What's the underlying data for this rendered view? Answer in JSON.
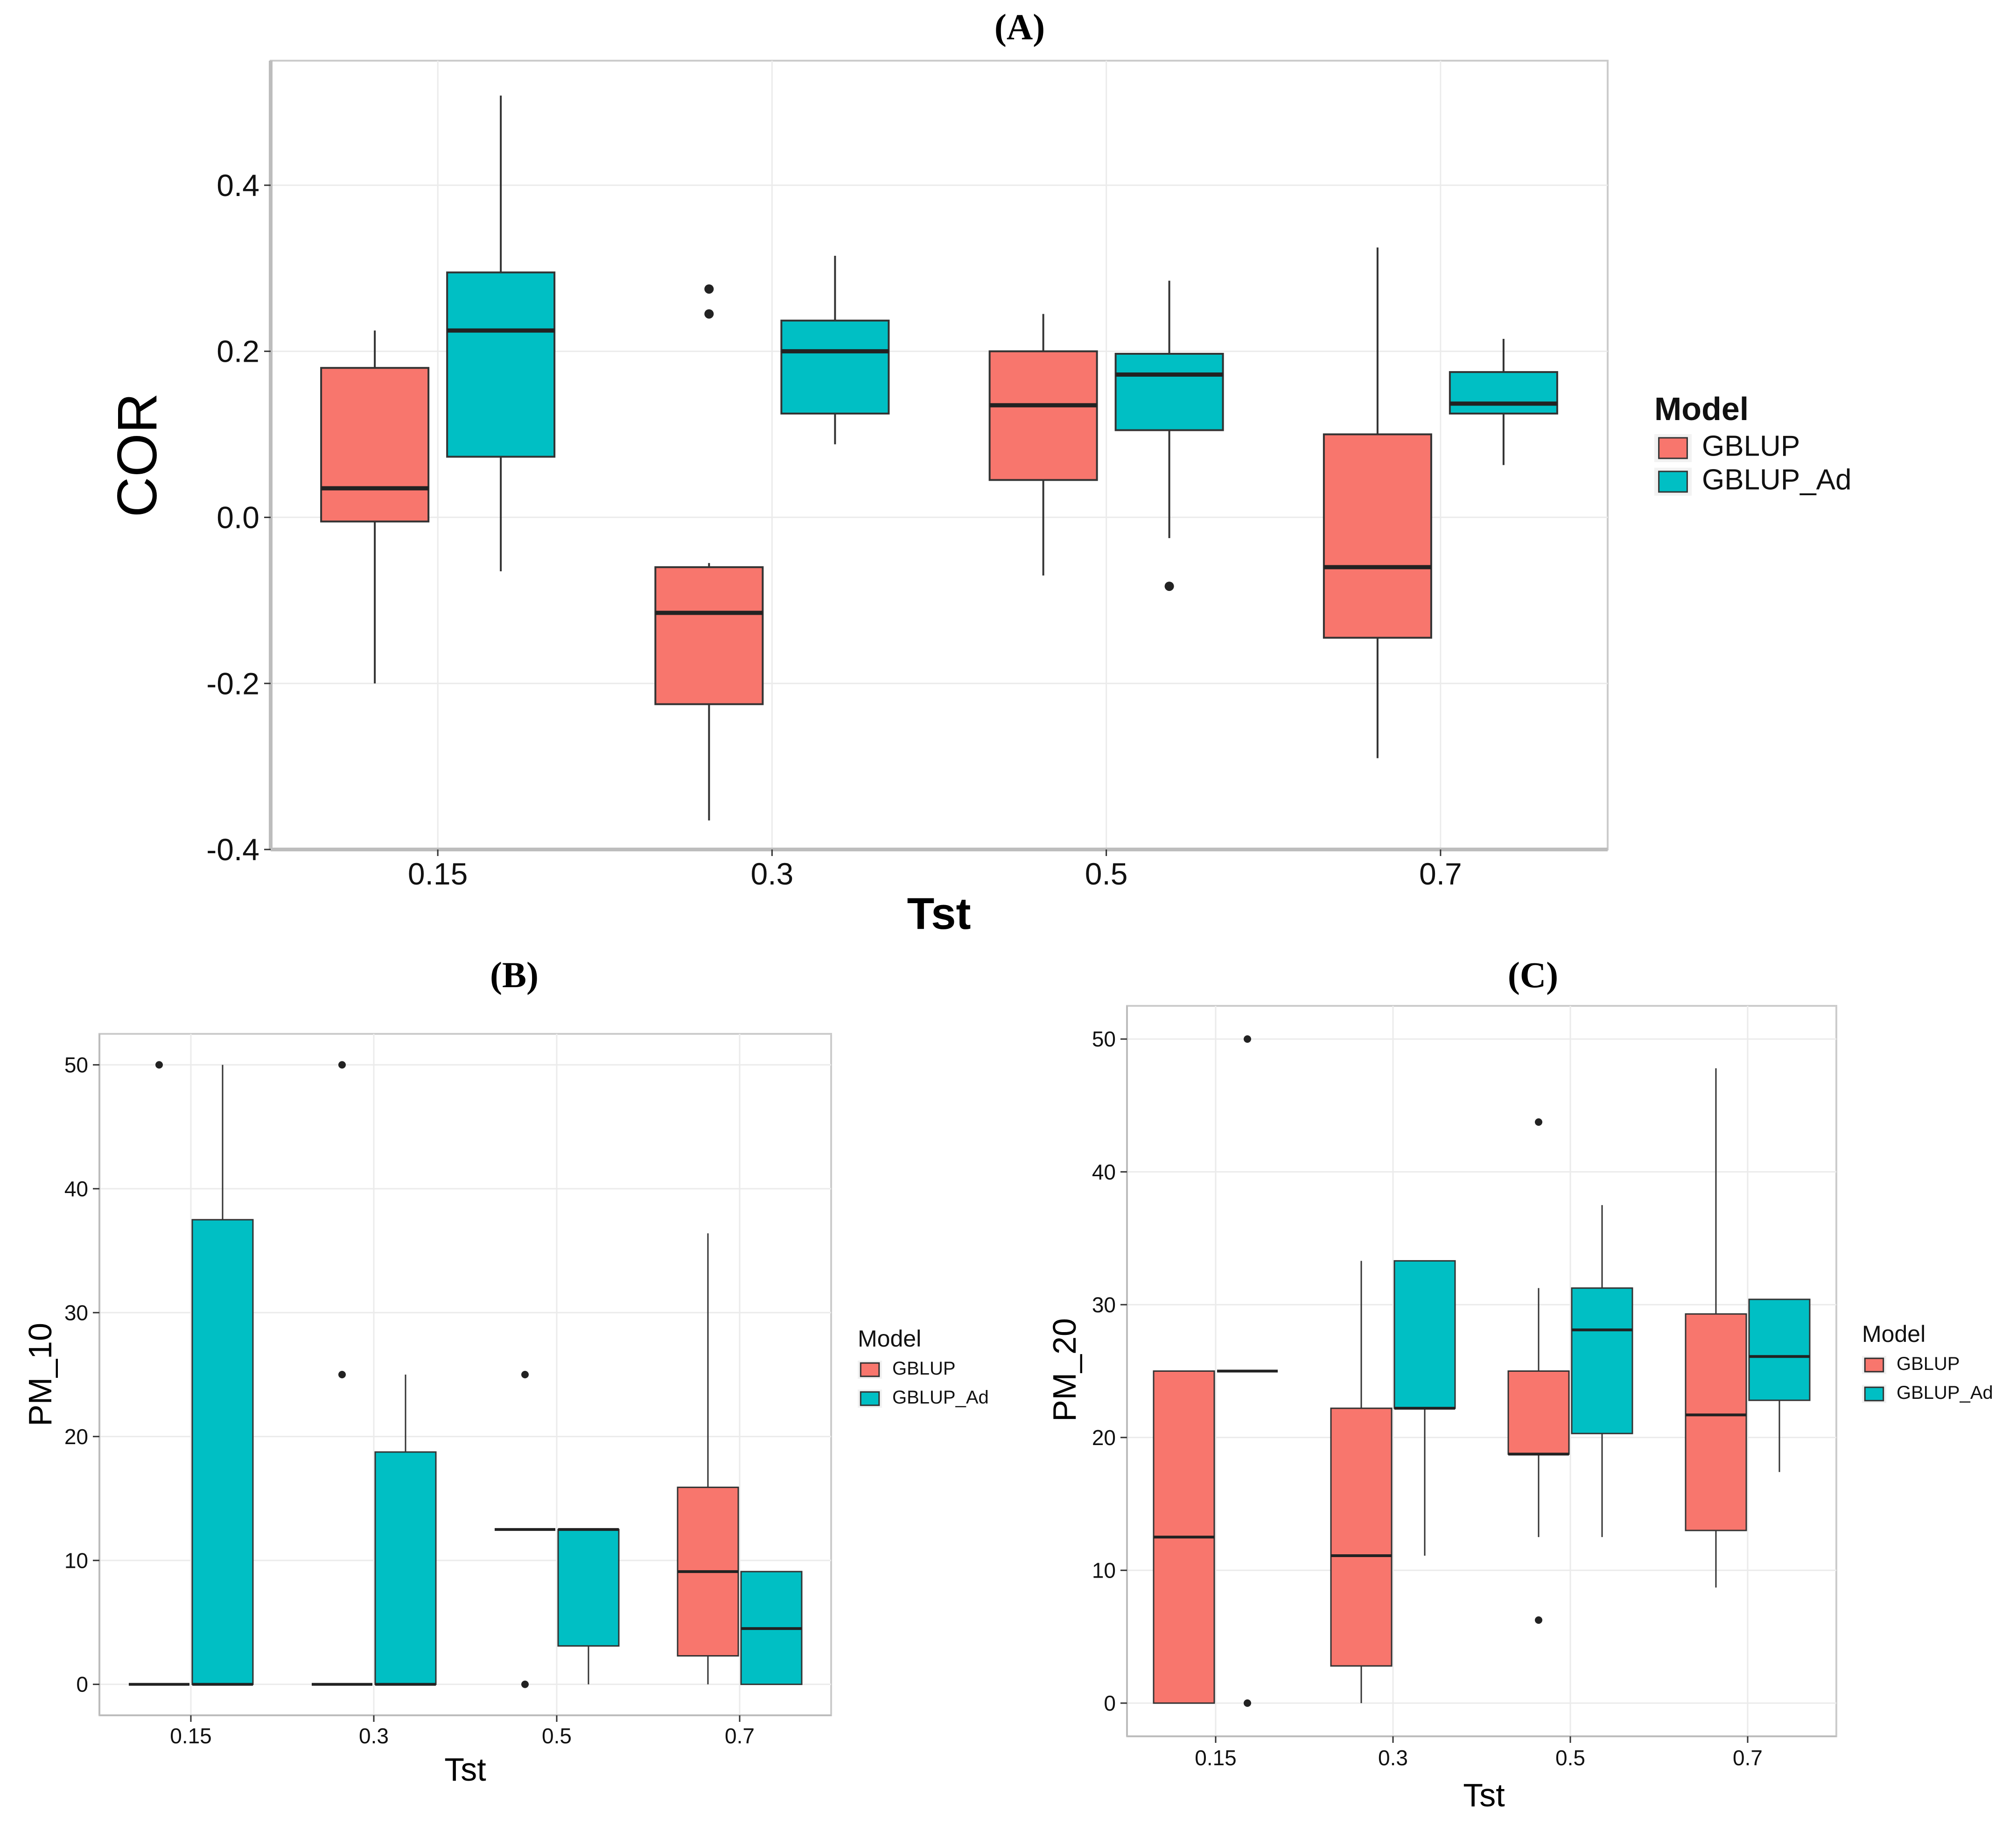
{
  "colors": {
    "GBLUP": "#F8766D",
    "GBLUP_Ad": "#00BFC4",
    "panel_border": "#cccccc",
    "grid": "#ebebeb"
  },
  "chart_data": [
    {
      "panel": "(A)",
      "type": "box",
      "xlabel": "Tst",
      "ylabel": "COR",
      "ylim": [
        -0.4,
        0.55
      ],
      "yticks": [
        -0.4,
        -0.2,
        0.0,
        0.2,
        0.4
      ],
      "ytick_labels": [
        "-0.4",
        "-0.2",
        "0.0",
        "0.2",
        "0.4"
      ],
      "categories": [
        "0.15",
        "0.3",
        "0.5",
        "0.7"
      ],
      "legend": {
        "title": "Model",
        "entries": [
          "GBLUP",
          "GBLUP_Ad"
        ]
      },
      "series": [
        {
          "name": "GBLUP",
          "boxes": [
            {
              "min": -0.2,
              "q1": -0.005,
              "median": 0.035,
              "q3": 0.18,
              "max": 0.225,
              "outliers": []
            },
            {
              "min": -0.365,
              "q1": -0.225,
              "median": -0.115,
              "q3": -0.06,
              "max": -0.055,
              "outliers": [
                0.275,
                0.245
              ]
            },
            {
              "min": -0.07,
              "q1": 0.045,
              "median": 0.135,
              "q3": 0.2,
              "max": 0.245,
              "outliers": []
            },
            {
              "min": -0.29,
              "q1": -0.145,
              "median": -0.06,
              "q3": 0.1,
              "max": 0.325,
              "outliers": []
            }
          ]
        },
        {
          "name": "GBLUP_Ad",
          "boxes": [
            {
              "min": -0.065,
              "q1": 0.073,
              "median": 0.225,
              "q3": 0.295,
              "max": 0.508,
              "outliers": []
            },
            {
              "min": 0.088,
              "q1": 0.125,
              "median": 0.2,
              "q3": 0.237,
              "max": 0.315,
              "outliers": []
            },
            {
              "min": -0.025,
              "q1": 0.105,
              "median": 0.172,
              "q3": 0.197,
              "max": 0.285,
              "outliers": [
                -0.083
              ]
            },
            {
              "min": 0.063,
              "q1": 0.125,
              "median": 0.137,
              "q3": 0.175,
              "max": 0.215,
              "outliers": []
            }
          ]
        }
      ]
    },
    {
      "panel": "(B)",
      "type": "box",
      "xlabel": "Tst",
      "ylabel": "PM_10",
      "ylim": [
        -2.5,
        52.5
      ],
      "yticks": [
        0,
        10,
        20,
        30,
        40,
        50
      ],
      "ytick_labels": [
        "0",
        "10",
        "20",
        "30",
        "40",
        "50"
      ],
      "categories": [
        "0.15",
        "0.3",
        "0.5",
        "0.7"
      ],
      "legend": {
        "title": "Model",
        "entries": [
          "GBLUP",
          "GBLUP_Ad"
        ]
      },
      "series": [
        {
          "name": "GBLUP",
          "boxes": [
            {
              "min": 0,
              "q1": 0,
              "median": 0,
              "q3": 0,
              "max": 0,
              "outliers": [
                50
              ]
            },
            {
              "min": 0,
              "q1": 0,
              "median": 0,
              "q3": 0,
              "max": 0,
              "outliers": [
                50,
                25
              ]
            },
            {
              "min": 12.5,
              "q1": 12.5,
              "median": 12.5,
              "q3": 12.5,
              "max": 12.5,
              "outliers": [
                25,
                0
              ]
            },
            {
              "min": 0,
              "q1": 2.3,
              "median": 9.1,
              "q3": 15.9,
              "max": 36.4,
              "outliers": []
            }
          ]
        },
        {
          "name": "GBLUP_Ad",
          "boxes": [
            {
              "min": 0,
              "q1": 0,
              "median": 0,
              "q3": 37.5,
              "max": 50,
              "outliers": []
            },
            {
              "min": 0,
              "q1": 0,
              "median": 0,
              "q3": 18.75,
              "max": 25,
              "outliers": []
            },
            {
              "min": 0,
              "q1": 3.1,
              "median": 12.5,
              "q3": 12.5,
              "max": 12.5,
              "outliers": []
            },
            {
              "min": 0,
              "q1": 0,
              "median": 4.5,
              "q3": 9.1,
              "max": 9.1,
              "outliers": []
            }
          ]
        }
      ]
    },
    {
      "panel": "(C)",
      "type": "box",
      "xlabel": "Tst",
      "ylabel": "PM_20",
      "ylim": [
        -2.5,
        52.5
      ],
      "yticks": [
        0,
        10,
        20,
        30,
        40,
        50
      ],
      "ytick_labels": [
        "0",
        "10",
        "20",
        "30",
        "40",
        "50"
      ],
      "categories": [
        "0.15",
        "0.3",
        "0.5",
        "0.7"
      ],
      "legend": {
        "title": "Model",
        "entries": [
          "GBLUP",
          "GBLUP_Ad"
        ]
      },
      "series": [
        {
          "name": "GBLUP",
          "boxes": [
            {
              "min": 0,
              "q1": 0,
              "median": 12.5,
              "q3": 25,
              "max": 25,
              "outliers": []
            },
            {
              "min": 0,
              "q1": 2.8,
              "median": 11.1,
              "q3": 22.2,
              "max": 33.3,
              "outliers": []
            },
            {
              "min": 12.5,
              "q1": 18.75,
              "median": 18.75,
              "q3": 25,
              "max": 31.25,
              "outliers": [
                43.75,
                6.25
              ]
            },
            {
              "min": 8.7,
              "q1": 13,
              "median": 21.7,
              "q3": 29.3,
              "max": 47.8,
              "outliers": []
            }
          ]
        },
        {
          "name": "GBLUP_Ad",
          "boxes": [
            {
              "min": 25,
              "q1": 25,
              "median": 25,
              "q3": 25,
              "max": 25,
              "outliers": [
                50,
                0
              ]
            },
            {
              "min": 11.1,
              "q1": 22.2,
              "median": 22.2,
              "q3": 33.3,
              "max": 33.3,
              "outliers": []
            },
            {
              "min": 12.5,
              "q1": 20.3,
              "median": 28.1,
              "q3": 31.25,
              "max": 37.5,
              "outliers": []
            },
            {
              "min": 17.4,
              "q1": 22.8,
              "median": 26.1,
              "q3": 30.4,
              "max": 30.4,
              "outliers": []
            }
          ]
        }
      ]
    }
  ]
}
